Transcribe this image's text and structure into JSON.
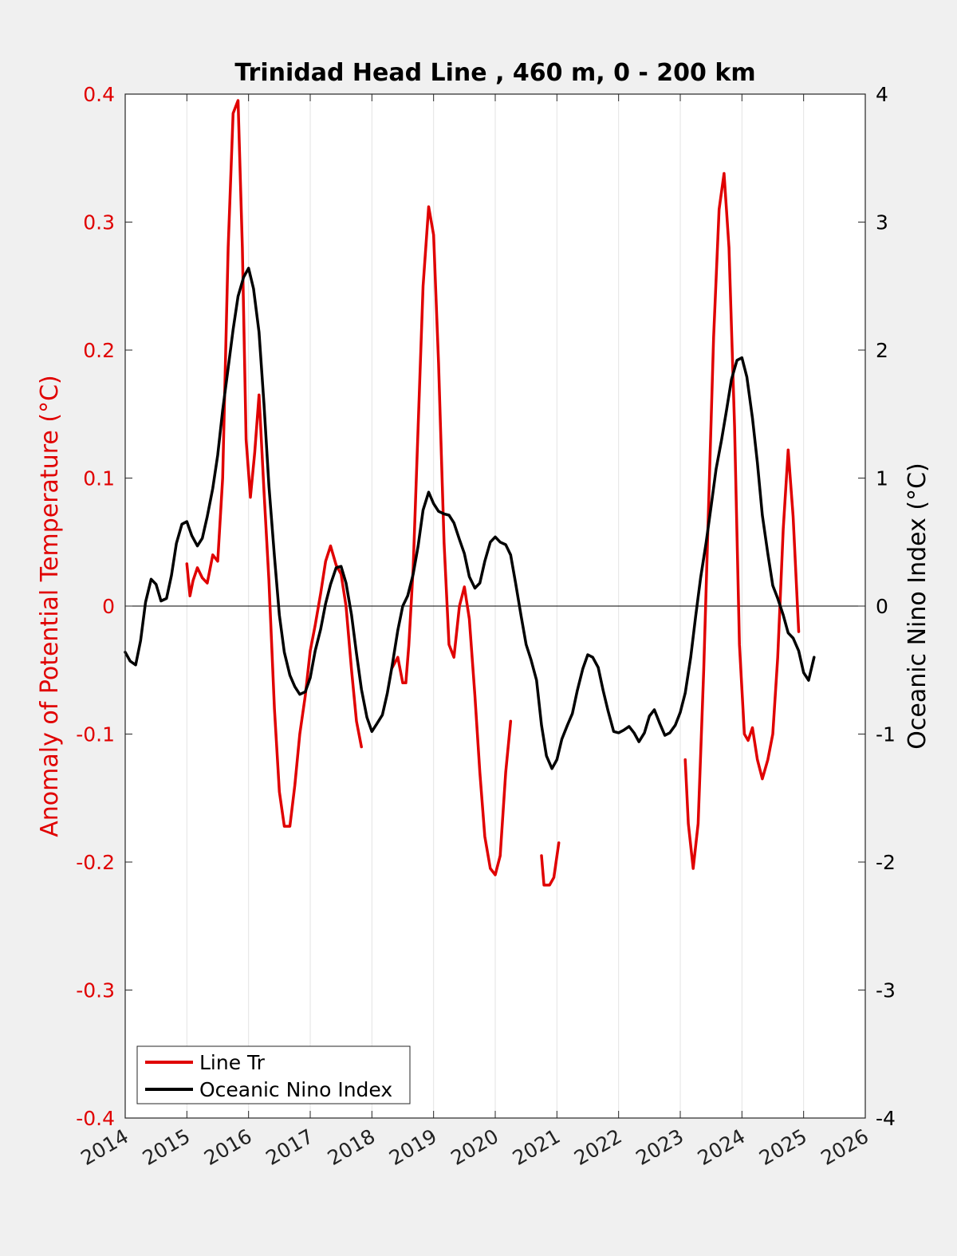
{
  "chart_data": {
    "type": "line",
    "title": "Trinidad Head Line , 460 m, 0 - 200 km",
    "xlabel": "",
    "ylabel_left": "Anomaly of Potential Temperature (°C)",
    "ylabel_right": "Oceanic Nino Index (°C)",
    "xlim": [
      2014,
      2026
    ],
    "ylim_left": [
      -0.4,
      0.4
    ],
    "ylim_right": [
      -4,
      4
    ],
    "x_ticks": [
      "2014",
      "2015",
      "2016",
      "2017",
      "2018",
      "2019",
      "2020",
      "2021",
      "2022",
      "2023",
      "2024",
      "2025",
      "2026"
    ],
    "y_ticks_left": [
      "0.4",
      "0.3",
      "0.2",
      "0.1",
      "0",
      "-0.1",
      "-0.2",
      "-0.3",
      "-0.4"
    ],
    "y_ticks_right": [
      "4",
      "3",
      "2",
      "1",
      "0",
      "-1",
      "-2",
      "-3",
      "-4"
    ],
    "grid": "vertical",
    "legend_position": "bottom-left",
    "colors": {
      "line_tr": "#e00000",
      "oni": "#000000"
    },
    "series": [
      {
        "name": "Line Tr",
        "axis": "left",
        "color": "#e00000",
        "segments": [
          [
            [
              2015.0,
              0.033
            ],
            [
              2015.05,
              0.008
            ],
            [
              2015.1,
              0.02
            ],
            [
              2015.17,
              0.03
            ],
            [
              2015.25,
              0.022
            ],
            [
              2015.33,
              0.018
            ],
            [
              2015.42,
              0.04
            ],
            [
              2015.5,
              0.035
            ],
            [
              2015.58,
              0.1
            ],
            [
              2015.67,
              0.28
            ],
            [
              2015.75,
              0.385
            ],
            [
              2015.83,
              0.395
            ],
            [
              2015.9,
              0.28
            ],
            [
              2015.96,
              0.13
            ],
            [
              2016.03,
              0.085
            ],
            [
              2016.1,
              0.12
            ],
            [
              2016.17,
              0.165
            ],
            [
              2016.25,
              0.09
            ],
            [
              2016.33,
              0.02
            ],
            [
              2016.42,
              -0.08
            ],
            [
              2016.5,
              -0.145
            ],
            [
              2016.58,
              -0.172
            ],
            [
              2016.67,
              -0.172
            ],
            [
              2016.75,
              -0.14
            ],
            [
              2016.83,
              -0.1
            ],
            [
              2016.92,
              -0.07
            ],
            [
              2017.0,
              -0.035
            ],
            [
              2017.08,
              -0.015
            ],
            [
              2017.17,
              0.01
            ],
            [
              2017.25,
              0.035
            ],
            [
              2017.33,
              0.047
            ],
            [
              2017.42,
              0.032
            ],
            [
              2017.5,
              0.025
            ],
            [
              2017.58,
              0.0
            ],
            [
              2017.67,
              -0.05
            ],
            [
              2017.75,
              -0.09
            ],
            [
              2017.83,
              -0.11
            ]
          ],
          [
            [
              2018.33,
              -0.048
            ],
            [
              2018.42,
              -0.04
            ],
            [
              2018.5,
              -0.06
            ],
            [
              2018.55,
              -0.06
            ],
            [
              2018.6,
              -0.03
            ],
            [
              2018.67,
              0.03
            ],
            [
              2018.75,
              0.14
            ],
            [
              2018.83,
              0.25
            ],
            [
              2018.92,
              0.312
            ],
            [
              2019.0,
              0.29
            ],
            [
              2019.08,
              0.19
            ],
            [
              2019.17,
              0.05
            ],
            [
              2019.25,
              -0.03
            ],
            [
              2019.33,
              -0.04
            ],
            [
              2019.42,
              0.0
            ],
            [
              2019.5,
              0.015
            ],
            [
              2019.58,
              -0.01
            ],
            [
              2019.67,
              -0.07
            ],
            [
              2019.75,
              -0.13
            ],
            [
              2019.83,
              -0.18
            ],
            [
              2019.92,
              -0.205
            ],
            [
              2020.0,
              -0.21
            ],
            [
              2020.08,
              -0.195
            ],
            [
              2020.17,
              -0.13
            ],
            [
              2020.25,
              -0.09
            ]
          ],
          [
            [
              2020.75,
              -0.195
            ],
            [
              2020.79,
              -0.218
            ],
            [
              2020.88,
              -0.218
            ],
            [
              2020.95,
              -0.212
            ],
            [
              2021.03,
              -0.185
            ]
          ],
          [
            [
              2023.08,
              -0.12
            ],
            [
              2023.13,
              -0.17
            ],
            [
              2023.21,
              -0.205
            ],
            [
              2023.29,
              -0.17
            ],
            [
              2023.38,
              -0.05
            ],
            [
              2023.46,
              0.08
            ],
            [
              2023.54,
              0.21
            ],
            [
              2023.63,
              0.31
            ],
            [
              2023.71,
              0.338
            ],
            [
              2023.79,
              0.28
            ],
            [
              2023.88,
              0.14
            ],
            [
              2023.96,
              -0.03
            ],
            [
              2024.04,
              -0.1
            ],
            [
              2024.1,
              -0.105
            ],
            [
              2024.17,
              -0.095
            ],
            [
              2024.25,
              -0.12
            ],
            [
              2024.33,
              -0.135
            ],
            [
              2024.42,
              -0.12
            ],
            [
              2024.5,
              -0.1
            ],
            [
              2024.58,
              -0.04
            ],
            [
              2024.67,
              0.06
            ],
            [
              2024.75,
              0.122
            ],
            [
              2024.83,
              0.07
            ],
            [
              2024.92,
              -0.02
            ]
          ]
        ]
      },
      {
        "name": "Oceanic Nino Index",
        "axis": "right",
        "color": "#000000",
        "points": [
          [
            2014.0,
            -0.36
          ],
          [
            2014.08,
            -0.43
          ],
          [
            2014.17,
            -0.46
          ],
          [
            2014.25,
            -0.27
          ],
          [
            2014.33,
            0.03
          ],
          [
            2014.42,
            0.21
          ],
          [
            2014.5,
            0.17
          ],
          [
            2014.58,
            0.04
          ],
          [
            2014.67,
            0.06
          ],
          [
            2014.75,
            0.24
          ],
          [
            2014.83,
            0.49
          ],
          [
            2014.92,
            0.64
          ],
          [
            2015.0,
            0.66
          ],
          [
            2015.08,
            0.55
          ],
          [
            2015.17,
            0.47
          ],
          [
            2015.25,
            0.53
          ],
          [
            2015.33,
            0.7
          ],
          [
            2015.42,
            0.92
          ],
          [
            2015.5,
            1.18
          ],
          [
            2015.58,
            1.53
          ],
          [
            2015.67,
            1.86
          ],
          [
            2015.75,
            2.16
          ],
          [
            2015.83,
            2.42
          ],
          [
            2015.92,
            2.57
          ],
          [
            2016.0,
            2.64
          ],
          [
            2016.08,
            2.48
          ],
          [
            2016.17,
            2.14
          ],
          [
            2016.25,
            1.58
          ],
          [
            2016.33,
            0.94
          ],
          [
            2016.42,
            0.39
          ],
          [
            2016.5,
            -0.07
          ],
          [
            2016.58,
            -0.36
          ],
          [
            2016.67,
            -0.54
          ],
          [
            2016.75,
            -0.63
          ],
          [
            2016.83,
            -0.69
          ],
          [
            2016.92,
            -0.67
          ],
          [
            2017.0,
            -0.56
          ],
          [
            2017.08,
            -0.35
          ],
          [
            2017.17,
            -0.18
          ],
          [
            2017.25,
            0.02
          ],
          [
            2017.33,
            0.17
          ],
          [
            2017.42,
            0.3
          ],
          [
            2017.5,
            0.31
          ],
          [
            2017.58,
            0.18
          ],
          [
            2017.67,
            -0.07
          ],
          [
            2017.75,
            -0.37
          ],
          [
            2017.83,
            -0.65
          ],
          [
            2017.92,
            -0.87
          ],
          [
            2018.0,
            -0.98
          ],
          [
            2018.08,
            -0.92
          ],
          [
            2018.17,
            -0.85
          ],
          [
            2018.25,
            -0.68
          ],
          [
            2018.33,
            -0.46
          ],
          [
            2018.42,
            -0.19
          ],
          [
            2018.5,
            0.0
          ],
          [
            2018.58,
            0.08
          ],
          [
            2018.67,
            0.25
          ],
          [
            2018.75,
            0.47
          ],
          [
            2018.83,
            0.75
          ],
          [
            2018.92,
            0.89
          ],
          [
            2019.0,
            0.8
          ],
          [
            2019.08,
            0.74
          ],
          [
            2019.17,
            0.72
          ],
          [
            2019.25,
            0.71
          ],
          [
            2019.33,
            0.65
          ],
          [
            2019.42,
            0.52
          ],
          [
            2019.5,
            0.41
          ],
          [
            2019.58,
            0.23
          ],
          [
            2019.67,
            0.14
          ],
          [
            2019.75,
            0.18
          ],
          [
            2019.83,
            0.35
          ],
          [
            2019.92,
            0.5
          ],
          [
            2020.0,
            0.54
          ],
          [
            2020.08,
            0.5
          ],
          [
            2020.17,
            0.48
          ],
          [
            2020.25,
            0.4
          ],
          [
            2020.33,
            0.18
          ],
          [
            2020.42,
            -0.08
          ],
          [
            2020.5,
            -0.3
          ],
          [
            2020.58,
            -0.42
          ],
          [
            2020.67,
            -0.58
          ],
          [
            2020.75,
            -0.93
          ],
          [
            2020.83,
            -1.17
          ],
          [
            2020.92,
            -1.27
          ],
          [
            2021.0,
            -1.2
          ],
          [
            2021.08,
            -1.04
          ],
          [
            2021.17,
            -0.93
          ],
          [
            2021.25,
            -0.84
          ],
          [
            2021.33,
            -0.66
          ],
          [
            2021.42,
            -0.49
          ],
          [
            2021.5,
            -0.38
          ],
          [
            2021.58,
            -0.4
          ],
          [
            2021.67,
            -0.48
          ],
          [
            2021.75,
            -0.66
          ],
          [
            2021.83,
            -0.82
          ],
          [
            2021.92,
            -0.98
          ],
          [
            2022.0,
            -0.99
          ],
          [
            2022.08,
            -0.97
          ],
          [
            2022.17,
            -0.94
          ],
          [
            2022.25,
            -0.99
          ],
          [
            2022.33,
            -1.06
          ],
          [
            2022.42,
            -0.99
          ],
          [
            2022.5,
            -0.86
          ],
          [
            2022.58,
            -0.81
          ],
          [
            2022.67,
            -0.92
          ],
          [
            2022.75,
            -1.01
          ],
          [
            2022.83,
            -0.99
          ],
          [
            2022.92,
            -0.93
          ],
          [
            2023.0,
            -0.83
          ],
          [
            2023.08,
            -0.68
          ],
          [
            2023.17,
            -0.4
          ],
          [
            2023.25,
            -0.08
          ],
          [
            2023.33,
            0.22
          ],
          [
            2023.42,
            0.5
          ],
          [
            2023.5,
            0.78
          ],
          [
            2023.58,
            1.07
          ],
          [
            2023.67,
            1.3
          ],
          [
            2023.75,
            1.53
          ],
          [
            2023.83,
            1.77
          ],
          [
            2023.92,
            1.92
          ],
          [
            2024.0,
            1.94
          ],
          [
            2024.08,
            1.79
          ],
          [
            2024.17,
            1.47
          ],
          [
            2024.25,
            1.12
          ],
          [
            2024.33,
            0.71
          ],
          [
            2024.42,
            0.41
          ],
          [
            2024.5,
            0.16
          ],
          [
            2024.58,
            0.06
          ],
          [
            2024.67,
            -0.07
          ],
          [
            2024.75,
            -0.21
          ],
          [
            2024.83,
            -0.25
          ],
          [
            2024.92,
            -0.35
          ],
          [
            2025.0,
            -0.52
          ],
          [
            2025.08,
            -0.58
          ],
          [
            2025.17,
            -0.4
          ]
        ]
      }
    ]
  }
}
